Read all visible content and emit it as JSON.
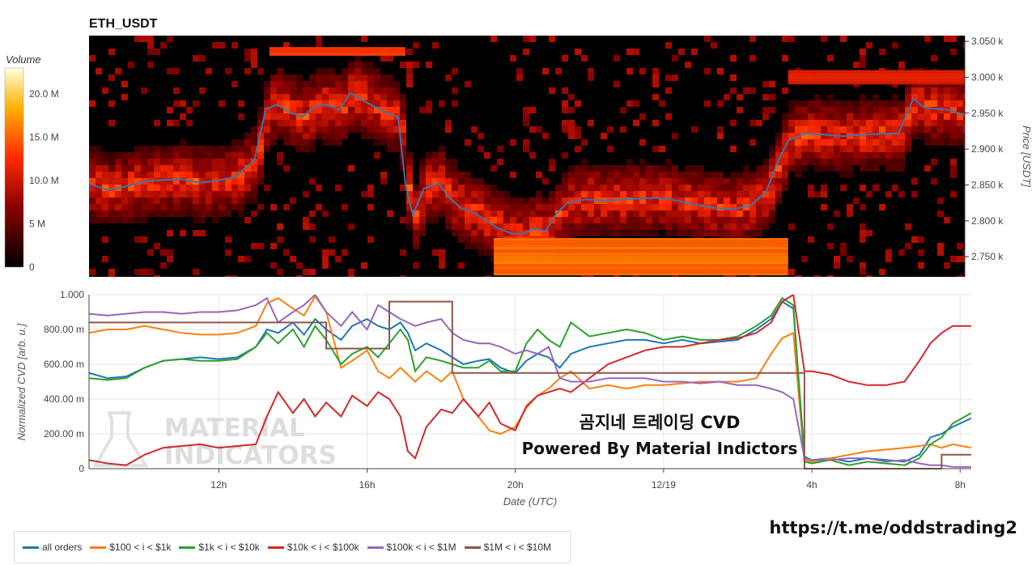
{
  "chart_data": [
    {
      "type": "heatmap",
      "title": "ETH_USDT",
      "ylabel": "Price [USDT]",
      "ylim": [
        2722,
        3058
      ],
      "yticks": [
        2750,
        2800,
        2850,
        2900,
        2950,
        3000,
        3050
      ],
      "ytick_labels": [
        "2.750 k",
        "2.800 k",
        "2.850 k",
        "2.900 k",
        "2.950 k",
        "3.000 k",
        "3.050 k"
      ],
      "colorbar": {
        "title": "Volume",
        "ticks": [
          0,
          5,
          10,
          15,
          20
        ],
        "tick_labels": [
          "0",
          "5 M",
          "10.0 M",
          "15.0 M",
          "20.0 M"
        ],
        "range": [
          0,
          23
        ]
      },
      "x_hours": [
        8.5,
        32.3
      ],
      "price_line": {
        "color": "#3b75af",
        "x": [
          8.5,
          9.0,
          9.5,
          10.0,
          10.5,
          11.0,
          11.5,
          12.0,
          12.5,
          13.0,
          13.3,
          13.6,
          14.0,
          14.3,
          14.6,
          14.9,
          15.3,
          15.6,
          16.0,
          16.3,
          16.6,
          16.9,
          17.1,
          17.3,
          17.6,
          18.0,
          18.3,
          18.6,
          19.0,
          19.3,
          19.6,
          20.0,
          20.3,
          20.6,
          20.9,
          21.2,
          21.5,
          22.0,
          22.5,
          23.0,
          23.5,
          24.0,
          24.5,
          25.0,
          25.5,
          26.0,
          26.5,
          26.9,
          27.2,
          27.5,
          27.8,
          28.0,
          28.5,
          29.0,
          29.5,
          30.0,
          30.5,
          30.9,
          31.2,
          31.5,
          31.8,
          32.3
        ],
        "y": [
          2852,
          2843,
          2848,
          2855,
          2857,
          2858,
          2853,
          2856,
          2862,
          2885,
          2955,
          2962,
          2950,
          2945,
          2958,
          2962,
          2955,
          2978,
          2966,
          2958,
          2950,
          2945,
          2850,
          2808,
          2845,
          2852,
          2832,
          2818,
          2810,
          2800,
          2790,
          2782,
          2782,
          2790,
          2785,
          2810,
          2825,
          2830,
          2828,
          2830,
          2831,
          2832,
          2828,
          2822,
          2818,
          2816,
          2822,
          2840,
          2880,
          2912,
          2918,
          2922,
          2920,
          2918,
          2920,
          2921,
          2922,
          2970,
          2958,
          2956,
          2955,
          2948
        ]
      }
    },
    {
      "type": "line",
      "xlabel": "Date (UTC)",
      "ylabel": "Normalized CVD [arb. u.]",
      "ylim": [
        0,
        1
      ],
      "yticks": [
        0,
        0.2,
        0.4,
        0.6,
        0.8,
        1.0
      ],
      "ytick_labels": [
        "0",
        "200.00 m",
        "400.00 m",
        "600.00 m",
        "800.00 m",
        "1.000"
      ],
      "x_range_hours": [
        8.5,
        32.3
      ],
      "xticks": [
        12,
        16,
        20,
        24,
        28,
        32
      ],
      "xtick_labels": [
        "12h",
        "16h",
        "20h",
        "12/19",
        "4h",
        "8h"
      ],
      "x": [
        8.5,
        9.0,
        9.5,
        10.0,
        10.5,
        11.0,
        11.5,
        12.0,
        12.5,
        13.0,
        13.3,
        13.6,
        14.0,
        14.3,
        14.6,
        14.9,
        15.3,
        15.6,
        16.0,
        16.3,
        16.6,
        16.9,
        17.1,
        17.3,
        17.6,
        18.0,
        18.3,
        18.6,
        19.0,
        19.3,
        19.6,
        20.0,
        20.3,
        20.6,
        20.9,
        21.2,
        21.5,
        22.0,
        22.5,
        23.0,
        23.5,
        24.0,
        24.5,
        25.0,
        25.5,
        26.0,
        26.5,
        26.9,
        27.2,
        27.5,
        27.8,
        28.0,
        28.5,
        29.0,
        29.5,
        30.0,
        30.5,
        30.9,
        31.2,
        31.5,
        31.8,
        32.3
      ],
      "series": [
        {
          "name": "all orders",
          "color": "#1f77b4",
          "values": [
            0.55,
            0.52,
            0.53,
            0.58,
            0.62,
            0.63,
            0.64,
            0.63,
            0.64,
            0.7,
            0.8,
            0.78,
            0.84,
            0.77,
            0.86,
            0.8,
            0.74,
            0.82,
            0.86,
            0.82,
            0.8,
            0.84,
            0.78,
            0.68,
            0.72,
            0.68,
            0.64,
            0.6,
            0.62,
            0.63,
            0.58,
            0.55,
            0.62,
            0.66,
            0.64,
            0.58,
            0.66,
            0.7,
            0.72,
            0.74,
            0.74,
            0.72,
            0.74,
            0.72,
            0.73,
            0.74,
            0.8,
            0.86,
            0.96,
            0.92,
            0.07,
            0.05,
            0.06,
            0.04,
            0.06,
            0.05,
            0.04,
            0.08,
            0.18,
            0.2,
            0.24,
            0.29
          ]
        },
        {
          "name": "$100 < i < $1k",
          "color": "#ff7f0e",
          "values": [
            0.78,
            0.8,
            0.8,
            0.82,
            0.8,
            0.78,
            0.77,
            0.77,
            0.78,
            0.82,
            0.95,
            0.98,
            0.92,
            0.88,
            0.99,
            0.9,
            0.58,
            0.62,
            0.68,
            0.56,
            0.52,
            0.58,
            0.54,
            0.5,
            0.56,
            0.5,
            0.56,
            0.4,
            0.3,
            0.22,
            0.2,
            0.24,
            0.35,
            0.42,
            0.46,
            0.52,
            0.56,
            0.46,
            0.48,
            0.46,
            0.48,
            0.48,
            0.49,
            0.5,
            0.5,
            0.5,
            0.52,
            0.66,
            0.75,
            0.78,
            0.05,
            0.04,
            0.06,
            0.08,
            0.1,
            0.11,
            0.12,
            0.13,
            0.14,
            0.12,
            0.14,
            0.12
          ]
        },
        {
          "name": "$1k < i < $10k",
          "color": "#2ca02c",
          "values": [
            0.52,
            0.51,
            0.52,
            0.58,
            0.62,
            0.63,
            0.62,
            0.62,
            0.63,
            0.7,
            0.78,
            0.72,
            0.8,
            0.7,
            0.82,
            0.74,
            0.6,
            0.66,
            0.7,
            0.64,
            0.72,
            0.8,
            0.74,
            0.56,
            0.64,
            0.62,
            0.6,
            0.58,
            0.58,
            0.62,
            0.56,
            0.56,
            0.72,
            0.8,
            0.74,
            0.7,
            0.84,
            0.76,
            0.78,
            0.8,
            0.78,
            0.74,
            0.76,
            0.74,
            0.74,
            0.76,
            0.82,
            0.88,
            0.98,
            0.94,
            0.04,
            0.03,
            0.05,
            0.02,
            0.04,
            0.03,
            0.02,
            0.06,
            0.14,
            0.18,
            0.26,
            0.32
          ]
        },
        {
          "name": "$10k < i < $100k",
          "color": "#d62728",
          "values": [
            0.05,
            0.03,
            0.02,
            0.08,
            0.12,
            0.13,
            0.14,
            0.12,
            0.13,
            0.14,
            0.3,
            0.44,
            0.32,
            0.4,
            0.3,
            0.38,
            0.3,
            0.42,
            0.36,
            0.44,
            0.4,
            0.3,
            0.1,
            0.06,
            0.24,
            0.34,
            0.32,
            0.4,
            0.3,
            0.38,
            0.26,
            0.22,
            0.36,
            0.42,
            0.44,
            0.46,
            0.44,
            0.52,
            0.6,
            0.64,
            0.68,
            0.7,
            0.7,
            0.72,
            0.74,
            0.75,
            0.78,
            0.84,
            0.96,
            1.0,
            0.56,
            0.56,
            0.54,
            0.5,
            0.48,
            0.48,
            0.5,
            0.62,
            0.72,
            0.78,
            0.82,
            0.82
          ]
        },
        {
          "name": "$100k < i < $1M",
          "color": "#9467bd",
          "values": [
            0.89,
            0.88,
            0.89,
            0.9,
            0.9,
            0.89,
            0.9,
            0.9,
            0.91,
            0.94,
            0.98,
            0.84,
            0.9,
            0.94,
            1.0,
            0.9,
            0.82,
            0.9,
            0.8,
            0.94,
            0.9,
            0.86,
            0.84,
            0.82,
            0.84,
            0.86,
            0.78,
            0.74,
            0.72,
            0.72,
            0.7,
            0.66,
            0.68,
            0.66,
            0.7,
            0.52,
            0.5,
            0.5,
            0.52,
            0.52,
            0.52,
            0.5,
            0.5,
            0.49,
            0.5,
            0.48,
            0.48,
            0.46,
            0.44,
            0.4,
            0.06,
            0.05,
            0.05,
            0.06,
            0.06,
            0.04,
            0.05,
            0.03,
            0.02,
            0.02,
            0.01,
            0.01
          ]
        },
        {
          "name": "$1M < i < $10M",
          "color": "#8c564b",
          "values": [
            0.84,
            0.84,
            0.84,
            0.84,
            0.84,
            0.84,
            0.84,
            0.84,
            0.84,
            0.84,
            0.84,
            0.84,
            0.84,
            0.84,
            0.84,
            0.69,
            0.69,
            0.69,
            0.69,
            0.69,
            0.96,
            0.96,
            0.96,
            0.96,
            0.96,
            0.96,
            0.55,
            0.55,
            0.55,
            0.55,
            0.55,
            0.55,
            0.55,
            0.55,
            0.55,
            0.55,
            0.55,
            0.55,
            0.55,
            0.55,
            0.55,
            0.55,
            0.55,
            0.55,
            0.55,
            0.55,
            0.55,
            0.55,
            0.55,
            0.55,
            0.0,
            0.0,
            0.0,
            0.0,
            0.0,
            0.0,
            0.0,
            0.0,
            0.0,
            0.08,
            0.08,
            0.08
          ]
        }
      ]
    }
  ],
  "overlay": {
    "line1": "곰지네 트레이딩 CVD",
    "line2": "Powered By Material Indictors"
  },
  "watermark": {
    "line1": "MATERIAL",
    "line2": "INDICATORS"
  },
  "url": "https://t.me/oddstrading2"
}
